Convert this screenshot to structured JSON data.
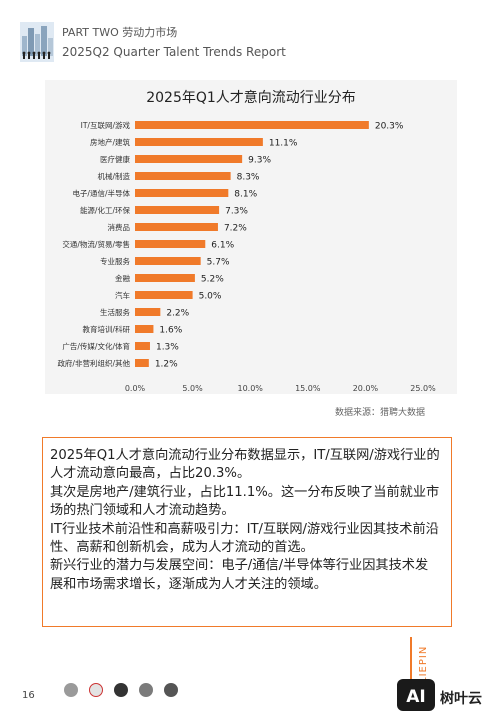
{
  "header": {
    "title_line1": "PART TWO 劳动力市场",
    "title_line2": "2025Q2 Quarter Talent Trends Report"
  },
  "chart_data": {
    "type": "bar",
    "orientation": "horizontal",
    "title": "2025年Q1人才意向流动行业分布",
    "categories": [
      "IT/互联网/游戏",
      "房地产/建筑",
      "医疗健康",
      "机械/制造",
      "电子/通信/半导体",
      "能源/化工/环保",
      "消费品",
      "交通/物流/贸易/零售",
      "专业服务",
      "金融",
      "汽车",
      "生活服务",
      "教育培训/科研",
      "广告/传媒/文化/体育",
      "政府/非营利组织/其他"
    ],
    "values": [
      20.3,
      11.1,
      9.3,
      8.3,
      8.1,
      7.3,
      7.2,
      6.1,
      5.7,
      5.2,
      5.0,
      2.2,
      1.6,
      1.3,
      1.2
    ],
    "value_labels": [
      "20.3%",
      "11.1%",
      "9.3%",
      "8.3%",
      "8.1%",
      "7.3%",
      "7.2%",
      "6.1%",
      "5.7%",
      "5.2%",
      "5.0%",
      "2.2%",
      "1.6%",
      "1.3%",
      "1.2%"
    ],
    "xlim": [
      0,
      25
    ],
    "xticks": [
      "0.0%",
      "5.0%",
      "10.0%",
      "15.0%",
      "20.0%",
      "25.0%"
    ],
    "bar_color": "#f07a2a",
    "grid": false,
    "legend": "none"
  },
  "source_note": "数据来源：猎聘大数据",
  "summary": {
    "p1": "2025年Q1人才意向流动行业分布数据显示，IT/互联网/游戏行业的人才流动意向最高，占比20.3%。",
    "p2": "其次是房地产/建筑行业，占比11.1%。这一分布反映了当前就业市场的热门领域和人才流动趋势。",
    "p3": "IT行业技术前沿性和高薪吸引力：IT/互联网/游戏行业因其技术前沿性、高薪和创新机会，成为人才流动的首选。",
    "p4": "新兴行业的潜力与发展空间：电子/通信/半导体等行业因其技术发展和市场需求增长，逐渐成为人才关注的领域。"
  },
  "footer": {
    "page_number": "16",
    "side_brand": "LIEPIN",
    "brand_badge": "AI",
    "brand_name": "树叶云"
  },
  "colors": {
    "accent": "#f07a2a",
    "chart_bg": "#f4f4f4"
  }
}
